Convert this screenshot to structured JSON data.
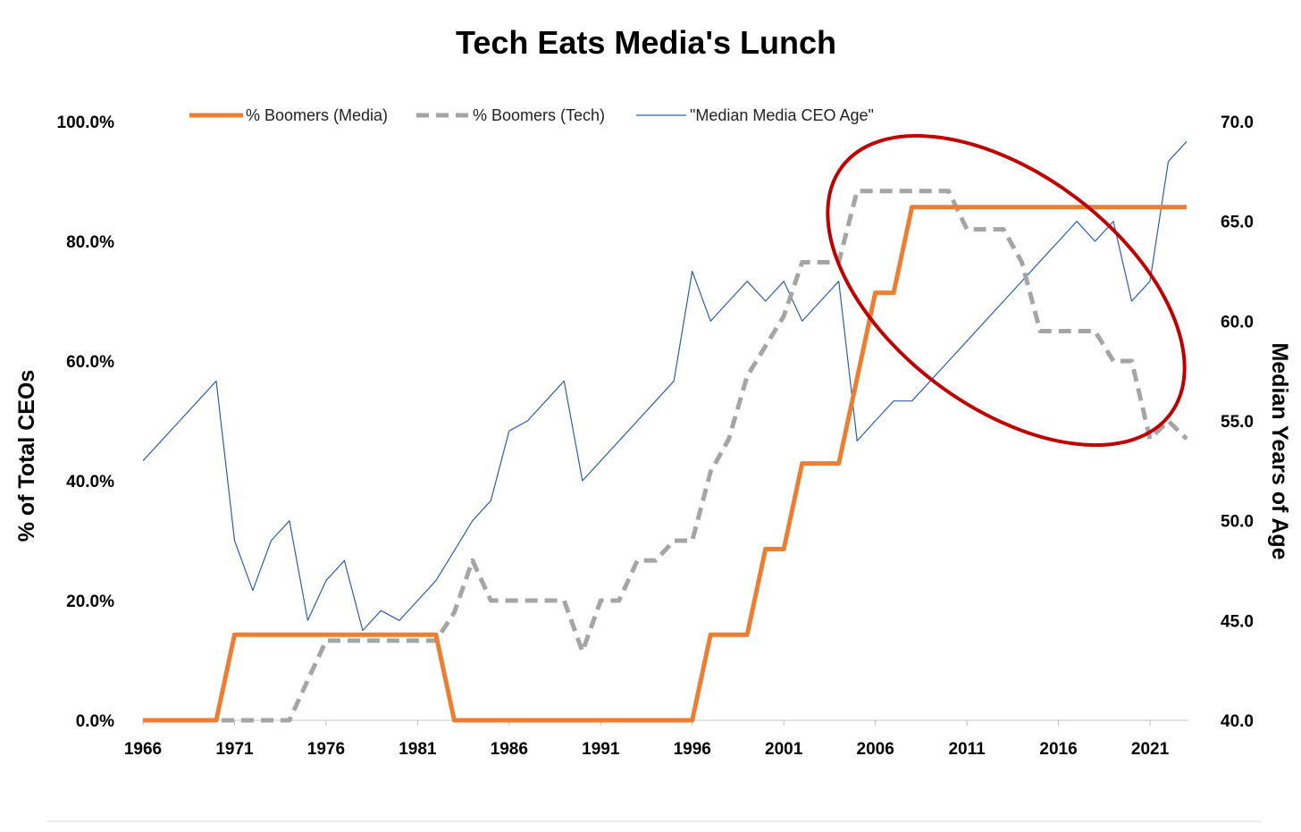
{
  "chart_data": {
    "type": "line",
    "title": "Tech Eats Media's Lunch",
    "y_left_label": "% of Total CEOs",
    "y_right_label": "Median Years of Age",
    "x_tick_labels": [
      "1966",
      "1971",
      "1976",
      "1981",
      "1986",
      "1991",
      "1996",
      "2001",
      "2006",
      "2011",
      "2016",
      "2021"
    ],
    "y_left_ticks": [
      "0.0%",
      "20.0%",
      "40.0%",
      "60.0%",
      "80.0%",
      "100.0%"
    ],
    "y_right_ticks": [
      "40.0",
      "45.0",
      "50.0",
      "55.0",
      "60.0",
      "65.0",
      "70.0"
    ],
    "x_range": [
      1966,
      2023
    ],
    "y_left_range": [
      0,
      100
    ],
    "y_right_range": [
      40,
      70
    ],
    "grid": false,
    "legend_position": "top",
    "x": [
      1966,
      1967,
      1968,
      1969,
      1970,
      1971,
      1972,
      1973,
      1974,
      1975,
      1976,
      1977,
      1978,
      1979,
      1980,
      1981,
      1982,
      1983,
      1984,
      1985,
      1986,
      1987,
      1988,
      1989,
      1990,
      1991,
      1992,
      1993,
      1994,
      1995,
      1996,
      1997,
      1998,
      1999,
      2000,
      2001,
      2002,
      2003,
      2004,
      2005,
      2006,
      2007,
      2008,
      2009,
      2010,
      2011,
      2012,
      2013,
      2014,
      2015,
      2016,
      2017,
      2018,
      2019,
      2020,
      2021,
      2022,
      2023
    ],
    "series": [
      {
        "name": "% Boomers (Media)",
        "axis": "left",
        "color": "#ED7D31",
        "style": "solid-thick",
        "values": [
          0,
          0,
          0,
          0,
          0,
          14.3,
          14.3,
          14.3,
          14.3,
          14.3,
          14.3,
          14.3,
          14.3,
          14.3,
          14.3,
          14.3,
          14.3,
          0,
          0,
          0,
          0,
          0,
          0,
          0,
          0,
          0,
          0,
          0,
          0,
          0,
          0,
          14.3,
          14.3,
          14.3,
          28.6,
          28.6,
          42.9,
          42.9,
          42.9,
          57.1,
          71.4,
          71.4,
          85.7,
          85.7,
          85.7,
          85.7,
          85.7,
          85.7,
          85.7,
          85.7,
          85.7,
          85.7,
          85.7,
          85.7,
          85.7,
          85.7,
          85.7,
          85.7
        ]
      },
      {
        "name": "% Boomers (Tech)",
        "axis": "left",
        "color": "#A5A5A5",
        "style": "dashed-thick",
        "values": [
          0,
          0,
          0,
          0,
          0,
          0,
          0,
          0,
          0,
          6.7,
          13.3,
          13.3,
          13.3,
          13.3,
          13.3,
          13.3,
          13.3,
          18,
          26.7,
          20,
          20,
          20,
          20,
          20,
          11.5,
          20,
          20,
          26.7,
          26.7,
          30,
          30,
          41.5,
          47,
          57.5,
          62.5,
          67.5,
          76.5,
          76.5,
          76.5,
          88.4,
          88.4,
          88.4,
          88.4,
          88.4,
          88.4,
          82,
          82,
          82,
          76.5,
          65,
          65,
          65,
          65,
          60,
          60,
          47,
          50,
          47
        ]
      },
      {
        "name": "\"Median Media CEO Age\"",
        "axis": "right",
        "color": "#2E5EAA",
        "style": "solid-thin",
        "values": [
          53,
          54,
          55,
          56,
          57,
          49,
          46.5,
          49,
          50,
          45,
          47,
          48,
          44.5,
          45.5,
          45,
          46,
          47,
          48.5,
          50,
          51,
          54.5,
          55,
          56,
          57,
          52,
          53,
          54,
          55,
          56,
          57,
          62.5,
          60,
          61,
          62,
          61,
          62,
          60,
          61,
          62,
          54,
          55,
          56,
          56,
          57,
          58,
          59,
          60,
          61,
          62,
          63,
          64,
          65,
          64,
          65,
          61,
          62,
          68,
          69
        ]
      }
    ],
    "annotations": [
      {
        "type": "ellipse",
        "color": "#C00000",
        "description_free": true
      }
    ]
  }
}
